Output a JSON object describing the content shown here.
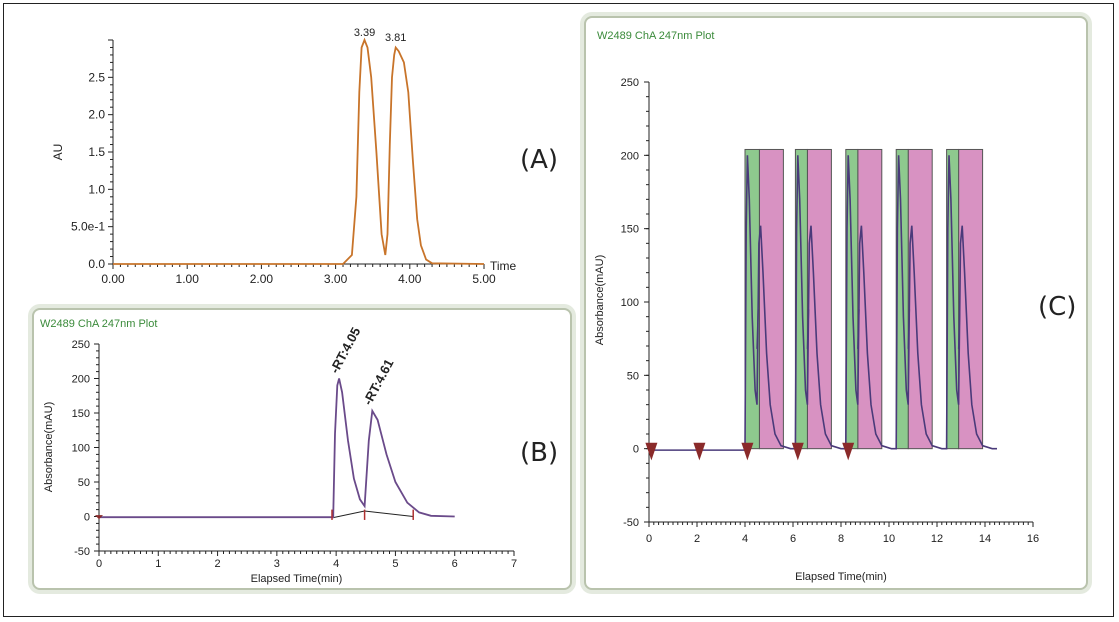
{
  "chart_data": [
    {
      "id": "A",
      "type": "line",
      "panel_label": "(A)",
      "title": "",
      "xlabel": "Time",
      "ylabel": "AU",
      "xlim": [
        0,
        5
      ],
      "ylim": [
        0,
        3.0
      ],
      "x_ticks": [
        "0.00",
        "1.00",
        "2.00",
        "3.00",
        "4.00",
        "5.00"
      ],
      "y_ticks": [
        "0.0",
        "5.0e-1",
        "1.0",
        "1.5",
        "2.0",
        "2.5"
      ],
      "peak_labels": [
        "3.39",
        "3.81"
      ],
      "series": [
        {
          "x": [
            0,
            3.1,
            3.22,
            3.28,
            3.32,
            3.35,
            3.39,
            3.43,
            3.48,
            3.55,
            3.62,
            3.67,
            3.7,
            3.73,
            3.76,
            3.79,
            3.81,
            3.85,
            3.92,
            3.98,
            4.04,
            4.1,
            4.15,
            4.22,
            4.3,
            5.0
          ],
          "y": [
            0,
            0,
            0.12,
            0.9,
            2.3,
            2.9,
            3.0,
            2.9,
            2.5,
            1.5,
            0.4,
            0.12,
            0.4,
            1.6,
            2.5,
            2.8,
            2.9,
            2.85,
            2.7,
            2.3,
            1.4,
            0.6,
            0.25,
            0.06,
            0.01,
            0
          ]
        }
      ],
      "line_color": "#c8742a",
      "grid": false
    },
    {
      "id": "B",
      "type": "line",
      "panel_label": "(B)",
      "title": "W2489 ChA 247nm Plot",
      "xlabel": "Elapsed Time(min)",
      "ylabel": "Absorbance(mAU)",
      "xlim": [
        0,
        7
      ],
      "ylim": [
        -50,
        250
      ],
      "x_ticks": [
        "0",
        "1",
        "2",
        "3",
        "4",
        "5",
        "6",
        "7"
      ],
      "y_ticks": [
        "-50",
        "0",
        "50",
        "100",
        "150",
        "200",
        "250"
      ],
      "peak_labels": [
        "-RT:4.05",
        "-RT:4.61"
      ],
      "series": [
        {
          "x": [
            0,
            3.95,
            3.98,
            4.02,
            4.05,
            4.1,
            4.2,
            4.3,
            4.4,
            4.48,
            4.55,
            4.61,
            4.7,
            4.85,
            5.0,
            5.2,
            5.4,
            5.6,
            6.0
          ],
          "y": [
            -1,
            -1,
            120,
            190,
            200,
            180,
            110,
            55,
            25,
            15,
            110,
            153,
            140,
            90,
            50,
            20,
            6,
            1,
            0
          ]
        }
      ],
      "baseline_marks": [
        3.93,
        4.48,
        5.3
      ],
      "line_color": "#6a4a8a",
      "grid": false
    },
    {
      "id": "C",
      "type": "line",
      "panel_label": "(C)",
      "title": "W2489 ChA 247nm Plot",
      "xlabel": "Elapsed Time(min)",
      "ylabel": "Absorbance(mAU)",
      "xlim": [
        0,
        16
      ],
      "ylim": [
        -50,
        250
      ],
      "x_ticks": [
        "0",
        "2",
        "4",
        "6",
        "8",
        "10",
        "12",
        "14",
        "16"
      ],
      "y_ticks": [
        "-50",
        "0",
        "50",
        "100",
        "150",
        "200",
        "250"
      ],
      "fraction_windows": [
        {
          "green": [
            4.0,
            4.6
          ],
          "pink": [
            4.6,
            5.6
          ]
        },
        {
          "green": [
            6.1,
            6.6
          ],
          "pink": [
            6.6,
            7.6
          ]
        },
        {
          "green": [
            8.2,
            8.7
          ],
          "pink": [
            8.7,
            9.7
          ]
        },
        {
          "green": [
            10.3,
            10.8
          ],
          "pink": [
            10.8,
            11.8
          ]
        },
        {
          "green": [
            12.4,
            12.9
          ],
          "pink": [
            12.9,
            13.9
          ]
        }
      ],
      "window_top": 204,
      "injection_markers": [
        0.1,
        2.1,
        4.1,
        6.2,
        8.3
      ],
      "injection_starts": [
        4.0,
        6.1,
        8.2,
        10.3,
        12.4
      ],
      "line_color": "#4a3a7a",
      "green_color": "#8ec98e",
      "pink_color": "#d892c2",
      "grid": false
    }
  ]
}
